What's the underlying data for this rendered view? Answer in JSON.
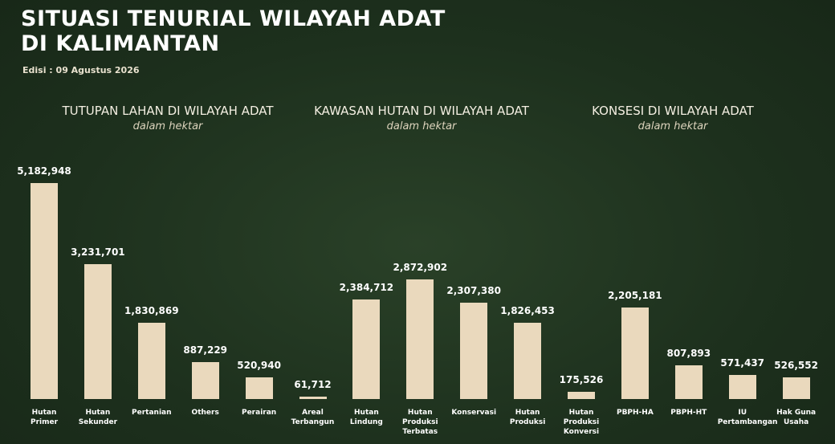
{
  "header": {
    "title": "SITUASI TENURIAL WILAYAH ADAT DI KALIMANTAN",
    "edition": "Edisi : 09 Agustus 2026"
  },
  "chart_data": [
    {
      "type": "bar",
      "title": "TUTUPAN LAHAN DI WILAYAH ADAT",
      "subtitle": "dalam hektar",
      "color": "#ead9bd",
      "categories": [
        "Hutan Primer",
        "Hutan Sekunder",
        "Pertanian",
        "Others",
        "Perairan",
        "Areal Terbangun"
      ],
      "values": [
        5182948,
        3231701,
        1830869,
        887229,
        520940,
        61712
      ],
      "value_labels": [
        "5,182,948",
        "3,231,701",
        "1,830,869",
        "887,229",
        "520,940",
        "61,712"
      ]
    },
    {
      "type": "bar",
      "title": "KAWASAN HUTAN DI WILAYAH ADAT",
      "subtitle": "dalam hektar",
      "color": "#ead9bd",
      "categories": [
        "Hutan Lindung",
        "Hutan Produksi Terbatas",
        "Konservasi",
        "Hutan Produksi",
        "Hutan Produksi Konversi"
      ],
      "values": [
        2384712,
        2872902,
        2307380,
        1826453,
        175526
      ],
      "value_labels": [
        "2,384,712",
        "2,872,902",
        "2,307,380",
        "1,826,453",
        "175,526"
      ]
    },
    {
      "type": "bar",
      "title": "KONSESI DI WILAYAH ADAT",
      "subtitle": "dalam hektar",
      "color": "#ead9bd",
      "categories": [
        "PBPH-HA",
        "PBPH-HT",
        "IU Pertambangan",
        "Hak Guna Usaha"
      ],
      "values": [
        2205181,
        807893,
        571437,
        526552
      ],
      "value_labels": [
        "2,205,181",
        "807,893",
        "571,437",
        "526,552"
      ]
    }
  ]
}
